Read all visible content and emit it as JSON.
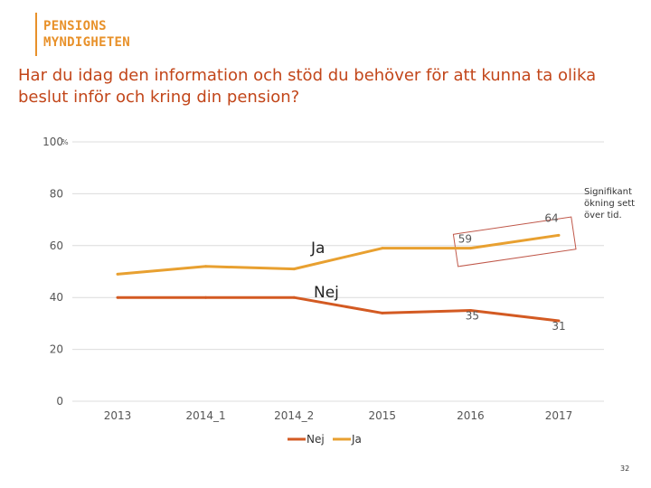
{
  "header": {
    "logo_line1": "PENSIONS",
    "logo_line2": "MYNDIGHETEN",
    "title": "Har du idag den information och stöd du behöver för att kunna ta olika beslut inför och kring din pension?",
    "page_number": "32"
  },
  "colors": {
    "nej": "#d35a22",
    "ja": "#e8a030",
    "box": "#c0584a",
    "title": "#c2461a",
    "logo": "#e8912a"
  },
  "chart_data": {
    "type": "line",
    "title": "Har du idag den information och stöd du behöver för att kunna ta olika beslut inför och kring din pension?",
    "categories": [
      "2013",
      "2014_1",
      "2014_2",
      "2015",
      "2016",
      "2017"
    ],
    "series": [
      {
        "name": "Nej",
        "values": [
          40,
          40,
          40,
          34,
          35,
          31
        ]
      },
      {
        "name": "Ja",
        "values": [
          49,
          52,
          51,
          59,
          59,
          64
        ]
      }
    ],
    "ylim": [
      0,
      100
    ],
    "yticks": [
      "0",
      "20",
      "40",
      "60",
      "80",
      "100"
    ],
    "y_top_suffix": "%",
    "inline_labels": {
      "ja": "Ja",
      "nej": "Nej"
    },
    "data_labels": [
      {
        "series": "Ja",
        "category": "2017",
        "text": "64"
      },
      {
        "series": "Ja",
        "category": "2016",
        "text": "59"
      },
      {
        "series": "Nej",
        "category": "2016",
        "text": "35"
      },
      {
        "series": "Nej",
        "category": "2017",
        "text": "31"
      }
    ],
    "annotation": [
      "Signifikant",
      "ökning sett",
      "över tid."
    ],
    "legend": [
      "Nej",
      "Ja"
    ],
    "legend_position": "bottom",
    "grid": true
  }
}
